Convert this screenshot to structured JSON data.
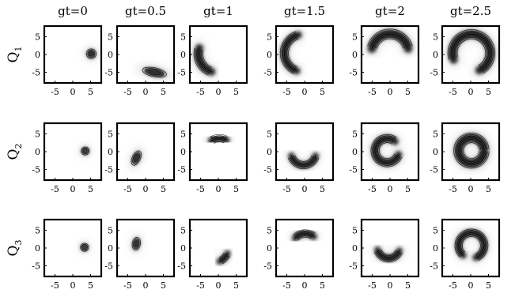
{
  "chart_data": {
    "type": "contour",
    "columns": [
      "gt=0",
      "gt=0.5",
      "gt=1",
      "gt=1.5",
      "gt=2",
      "gt=2.5"
    ],
    "rows": [
      {
        "label": "Q",
        "sub": "1"
      },
      {
        "label": "Q",
        "sub": "2"
      },
      {
        "label": "Q",
        "sub": "3"
      }
    ],
    "x_ticks": [
      -5,
      0,
      5
    ],
    "y_ticks": [
      5,
      0,
      -5
    ],
    "xlim": [
      -8,
      8
    ],
    "ylim": [
      -8,
      8
    ],
    "grid": false,
    "colors": {
      "ink": "#000000",
      "fill": "#2a2a2a",
      "halo": "#d8d8d8"
    },
    "panels": [
      [
        {
          "type": "blob",
          "cx": 5.2,
          "cy": 0.2,
          "rx": 1.2,
          "ry": 1.2,
          "rot": 0
        },
        {
          "type": "blob",
          "cx": 2.5,
          "cy": -5.0,
          "rx": 3.0,
          "ry": 1.1,
          "rot": -12
        },
        {
          "type": "arc",
          "r": 5.3,
          "a0": 162,
          "a1": 252,
          "w": 2.4,
          "dx": -0.3,
          "dy": 0.2
        },
        {
          "type": "arc",
          "r": 5.3,
          "a0": 105,
          "a1": 250,
          "w": 2.2,
          "dx": -0.4,
          "dy": 0.4
        },
        {
          "type": "arc",
          "r": 5.2,
          "a0": 12,
          "a1": 168,
          "w": 2.6,
          "dx": 0.0,
          "dy": 0.6
        },
        {
          "type": "arc",
          "r": 5.3,
          "a0": -65,
          "a1": 200,
          "w": 2.5,
          "dx": 0.2,
          "dy": 0.4
        }
      ],
      [
        {
          "type": "blob",
          "cx": 3.5,
          "cy": 0.2,
          "rx": 1.0,
          "ry": 1.0,
          "rot": 0
        },
        {
          "type": "blob",
          "cx": -2.6,
          "cy": -1.8,
          "rx": 1.0,
          "ry": 1.9,
          "rot": -25
        },
        {
          "type": "arc",
          "r": 4.0,
          "a0": 60,
          "a1": 125,
          "w": 2.0,
          "dx": 0.3,
          "dy": -0.2
        },
        {
          "type": "arc",
          "r": 3.5,
          "a0": 195,
          "a1": 345,
          "w": 2.0,
          "dx": -0.3,
          "dy": -0.3
        },
        {
          "type": "arc",
          "r": 3.4,
          "a0": 50,
          "a1": 340,
          "w": 2.2,
          "dx": -0.8,
          "dy": 0.3
        },
        {
          "type": "arc",
          "r": 3.6,
          "a0": 0,
          "a1": 360,
          "w": 2.6,
          "dx": 0.2,
          "dy": 0.3
        }
      ],
      [
        {
          "type": "blob",
          "cx": 3.3,
          "cy": 0.2,
          "rx": 1.0,
          "ry": 1.0,
          "rot": 0
        },
        {
          "type": "blob",
          "cx": -2.6,
          "cy": 1.2,
          "rx": 1.0,
          "ry": 1.6,
          "rot": -10
        },
        {
          "type": "arc",
          "r": 4.6,
          "a0": -65,
          "a1": -25,
          "w": 1.9,
          "dx": -1.6,
          "dy": 0.4
        },
        {
          "type": "arc",
          "r": 3.7,
          "a0": 50,
          "a1": 140,
          "w": 2.0,
          "dx": 0.2,
          "dy": 0.4
        },
        {
          "type": "arc",
          "r": 3.2,
          "a0": 195,
          "a1": 340,
          "w": 2.0,
          "dx": -0.4,
          "dy": 0.3
        },
        {
          "type": "arc",
          "r": 3.6,
          "a0": -70,
          "a1": 230,
          "w": 2.0,
          "dx": 0.2,
          "dy": 0.7
        }
      ]
    ]
  }
}
